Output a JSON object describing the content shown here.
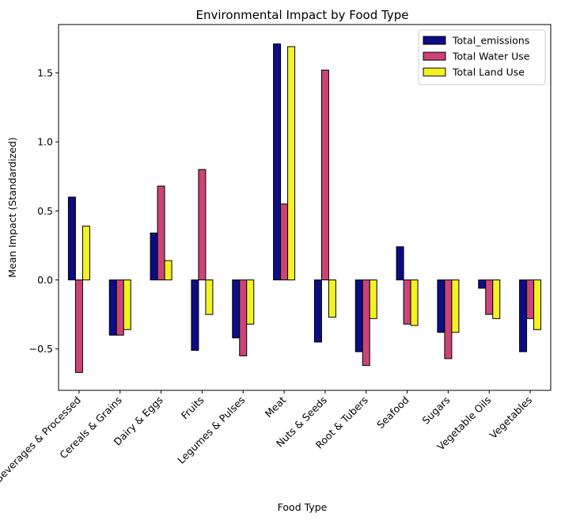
{
  "chart_data": {
    "type": "bar",
    "title": "Environmental Impact by Food Type",
    "xlabel": "Food Type",
    "ylabel": "Mean Impact (Standardized)",
    "ylim": [
      -0.8,
      1.85
    ],
    "yticks": [
      -0.5,
      0.0,
      0.5,
      1.0,
      1.5
    ],
    "ytick_labels": [
      "−0.5",
      "0.0",
      "0.5",
      "1.0",
      "1.5"
    ],
    "grid": false,
    "legend_position": "top-right",
    "categories": [
      "Beverages & Processed",
      "Cereals & Grains",
      "Dairy & Eggs",
      "Fruits",
      "Legumes & Pulses",
      "Meat",
      "Nuts & Seeds",
      "Root & Tubers",
      "Seafood",
      "Sugars",
      "Vegetable Oils",
      "Vegetables"
    ],
    "series": [
      {
        "name": "Total_emissions",
        "color": "#0c0c84",
        "values": [
          0.6,
          -0.4,
          0.34,
          -0.51,
          -0.42,
          1.71,
          -0.45,
          -0.52,
          0.24,
          -0.38,
          -0.06,
          -0.52
        ]
      },
      {
        "name": "Total Water Use",
        "color": "#cc4476",
        "values": [
          -0.67,
          -0.4,
          0.68,
          0.8,
          -0.55,
          0.55,
          1.52,
          -0.62,
          -0.32,
          -0.57,
          -0.25,
          -0.28
        ]
      },
      {
        "name": "Total Land Use",
        "color": "#f2f224",
        "values": [
          0.39,
          -0.36,
          0.14,
          -0.25,
          -0.32,
          1.69,
          -0.27,
          -0.28,
          -0.33,
          -0.38,
          -0.28,
          -0.36
        ]
      }
    ]
  }
}
